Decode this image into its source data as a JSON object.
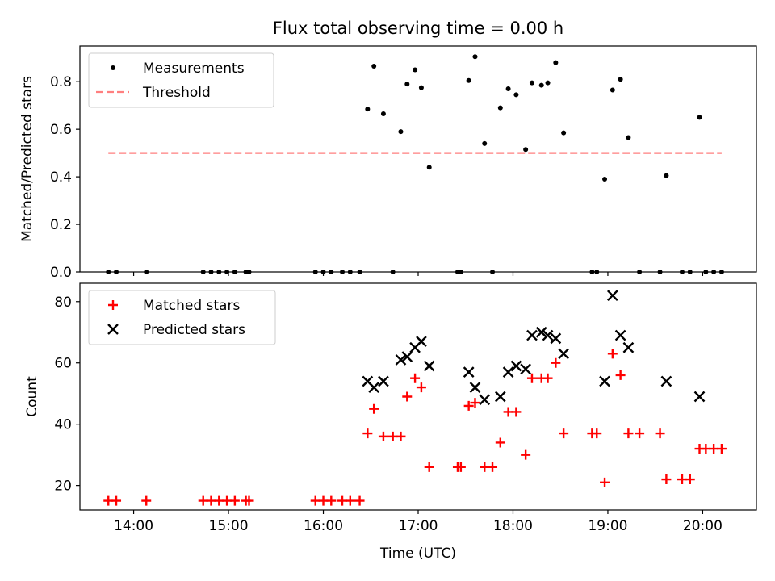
{
  "figure": {
    "title": "Flux total observing time = 0.00 h"
  },
  "chart_data": [
    {
      "type": "scatter",
      "panel": "top",
      "title": "Flux total observing time = 0.00 h",
      "xlabel": "",
      "ylabel": "Matched/Predicted stars",
      "xlim": [
        "13:26",
        "20:34"
      ],
      "ylim": [
        0,
        0.95
      ],
      "yticks": [
        0.0,
        0.2,
        0.4,
        0.6,
        0.8
      ],
      "ytick_labels": [
        "0.0",
        "0.2",
        "0.4",
        "0.6",
        "0.8"
      ],
      "xticks": [
        "14:00",
        "15:00",
        "16:00",
        "17:00",
        "18:00",
        "19:00",
        "20:00"
      ],
      "grid": false,
      "legend": {
        "location": "upper left",
        "entries": [
          "Measurements",
          "Threshold"
        ]
      },
      "series": [
        {
          "name": "Measurements",
          "marker": "dot",
          "color": "#000000",
          "points": [
            [
              "13:44",
              0.0
            ],
            [
              "13:49",
              0.0
            ],
            [
              "14:08",
              0.0
            ],
            [
              "14:44",
              0.0
            ],
            [
              "14:49",
              0.0
            ],
            [
              "14:54",
              0.0
            ],
            [
              "14:59",
              0.0
            ],
            [
              "15:04",
              0.0
            ],
            [
              "15:11",
              0.0
            ],
            [
              "15:13",
              0.0
            ],
            [
              "15:55",
              0.0
            ],
            [
              "16:00",
              0.0
            ],
            [
              "16:05",
              0.0
            ],
            [
              "16:12",
              0.0
            ],
            [
              "16:17",
              0.0
            ],
            [
              "16:23",
              0.0
            ],
            [
              "16:28",
              0.685
            ],
            [
              "16:32",
              0.865
            ],
            [
              "16:38",
              0.665
            ],
            [
              "16:44",
              0.0
            ],
            [
              "16:49",
              0.59
            ],
            [
              "16:53",
              0.79
            ],
            [
              "16:58",
              0.85
            ],
            [
              "17:02",
              0.775
            ],
            [
              "17:07",
              0.44
            ],
            [
              "17:25",
              0.0
            ],
            [
              "17:27",
              0.0
            ],
            [
              "17:32",
              0.805
            ],
            [
              "17:36",
              0.905
            ],
            [
              "17:42",
              0.54
            ],
            [
              "17:47",
              0.0
            ],
            [
              "17:52",
              0.69
            ],
            [
              "17:57",
              0.77
            ],
            [
              "18:02",
              0.745
            ],
            [
              "18:08",
              0.515
            ],
            [
              "18:12",
              0.795
            ],
            [
              "18:18",
              0.785
            ],
            [
              "18:22",
              0.795
            ],
            [
              "18:27",
              0.88
            ],
            [
              "18:32",
              0.585
            ],
            [
              "18:50",
              0.0
            ],
            [
              "18:53",
              0.0
            ],
            [
              "18:58",
              0.39
            ],
            [
              "19:03",
              0.765
            ],
            [
              "19:08",
              0.81
            ],
            [
              "19:13",
              0.565
            ],
            [
              "19:20",
              0.0
            ],
            [
              "19:33",
              0.0
            ],
            [
              "19:37",
              0.405
            ],
            [
              "19:47",
              0.0
            ],
            [
              "19:52",
              0.0
            ],
            [
              "19:58",
              0.65
            ],
            [
              "20:02",
              0.0
            ],
            [
              "20:07",
              0.0
            ],
            [
              "20:12",
              0.0
            ]
          ]
        },
        {
          "name": "Threshold",
          "line_style": "dashed",
          "color": "#ff7f7f",
          "points": [
            [
              "13:44",
              0.5
            ],
            [
              "20:12",
              0.5
            ]
          ]
        }
      ]
    },
    {
      "type": "scatter",
      "panel": "bottom",
      "xlabel": "Time (UTC)",
      "ylabel": "Count",
      "xlim": [
        "13:26",
        "20:34"
      ],
      "ylim": [
        12,
        86
      ],
      "yticks": [
        20,
        40,
        60,
        80
      ],
      "ytick_labels": [
        "20",
        "40",
        "60",
        "80"
      ],
      "xticks": [
        "14:00",
        "15:00",
        "16:00",
        "17:00",
        "18:00",
        "19:00",
        "20:00"
      ],
      "grid": false,
      "legend": {
        "location": "upper left",
        "entries": [
          "Matched stars",
          "Predicted stars"
        ]
      },
      "series": [
        {
          "name": "Matched stars",
          "marker": "plus",
          "color": "#ff0000",
          "points": [
            [
              "13:44",
              15
            ],
            [
              "13:49",
              15
            ],
            [
              "14:08",
              15
            ],
            [
              "14:44",
              15
            ],
            [
              "14:49",
              15
            ],
            [
              "14:54",
              15
            ],
            [
              "14:59",
              15
            ],
            [
              "15:04",
              15
            ],
            [
              "15:11",
              15
            ],
            [
              "15:13",
              15
            ],
            [
              "15:55",
              15
            ],
            [
              "16:00",
              15
            ],
            [
              "16:05",
              15
            ],
            [
              "16:12",
              15
            ],
            [
              "16:17",
              15
            ],
            [
              "16:23",
              15
            ],
            [
              "16:28",
              37
            ],
            [
              "16:32",
              45
            ],
            [
              "16:38",
              36
            ],
            [
              "16:44",
              36
            ],
            [
              "16:49",
              36
            ],
            [
              "16:53",
              49
            ],
            [
              "16:58",
              55
            ],
            [
              "17:02",
              52
            ],
            [
              "17:07",
              26
            ],
            [
              "17:25",
              26
            ],
            [
              "17:27",
              26
            ],
            [
              "17:32",
              46
            ],
            [
              "17:36",
              47
            ],
            [
              "17:42",
              26
            ],
            [
              "17:47",
              26
            ],
            [
              "17:52",
              34
            ],
            [
              "17:57",
              44
            ],
            [
              "18:02",
              44
            ],
            [
              "18:08",
              30
            ],
            [
              "18:12",
              55
            ],
            [
              "18:18",
              55
            ],
            [
              "18:22",
              55
            ],
            [
              "18:27",
              60
            ],
            [
              "18:32",
              37
            ],
            [
              "18:50",
              37
            ],
            [
              "18:53",
              37
            ],
            [
              "18:58",
              21
            ],
            [
              "19:03",
              63
            ],
            [
              "19:08",
              56
            ],
            [
              "19:13",
              37
            ],
            [
              "19:20",
              37
            ],
            [
              "19:33",
              37
            ],
            [
              "19:37",
              22
            ],
            [
              "19:47",
              22
            ],
            [
              "19:52",
              22
            ],
            [
              "19:58",
              32
            ],
            [
              "20:02",
              32
            ],
            [
              "20:07",
              32
            ],
            [
              "20:12",
              32
            ]
          ]
        },
        {
          "name": "Predicted stars",
          "marker": "x",
          "color": "#000000",
          "points": [
            [
              "16:28",
              54
            ],
            [
              "16:32",
              52
            ],
            [
              "16:38",
              54
            ],
            [
              "16:49",
              61
            ],
            [
              "16:53",
              62
            ],
            [
              "16:58",
              65
            ],
            [
              "17:02",
              67
            ],
            [
              "17:07",
              59
            ],
            [
              "17:32",
              57
            ],
            [
              "17:36",
              52
            ],
            [
              "17:42",
              48
            ],
            [
              "17:52",
              49
            ],
            [
              "17:57",
              57
            ],
            [
              "18:02",
              59
            ],
            [
              "18:08",
              58
            ],
            [
              "18:12",
              69
            ],
            [
              "18:18",
              70
            ],
            [
              "18:22",
              69
            ],
            [
              "18:27",
              68
            ],
            [
              "18:32",
              63
            ],
            [
              "18:58",
              54
            ],
            [
              "19:03",
              82
            ],
            [
              "19:08",
              69
            ],
            [
              "19:13",
              65
            ],
            [
              "19:37",
              54
            ],
            [
              "19:58",
              49
            ]
          ]
        }
      ]
    }
  ]
}
